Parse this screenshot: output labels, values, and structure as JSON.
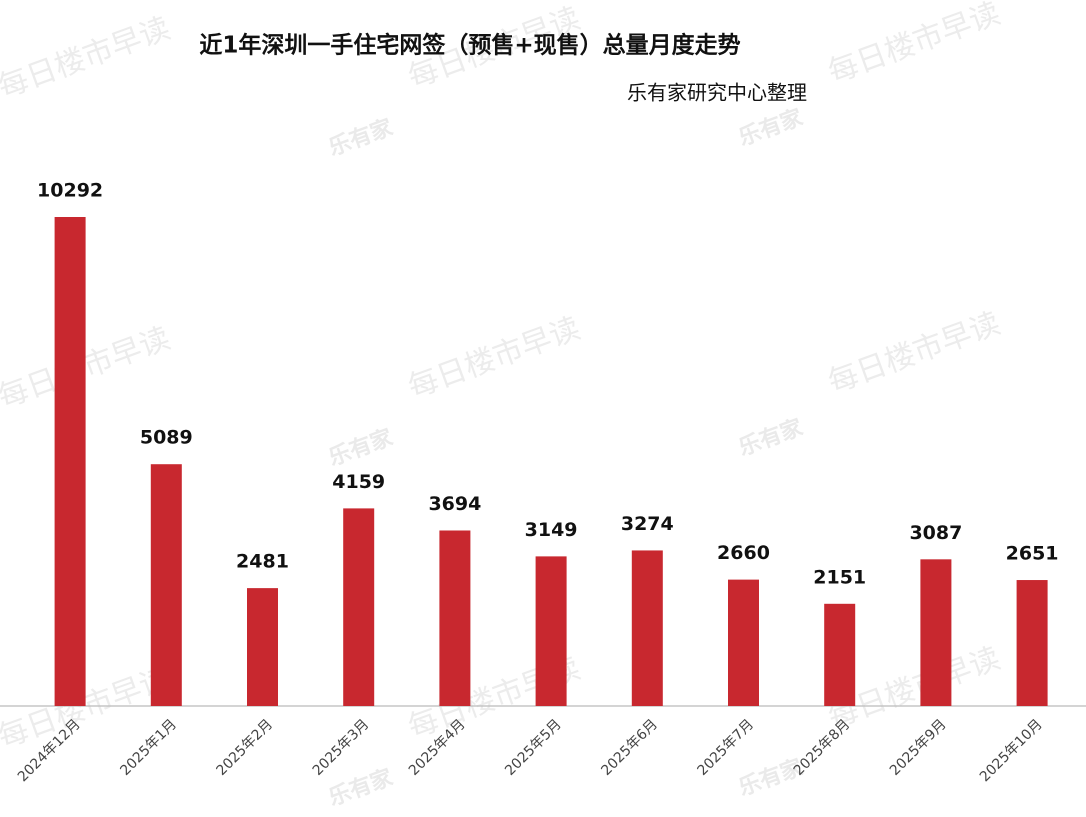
{
  "chart_data": {
    "type": "bar",
    "title": "近1年深圳一手住宅网签（预售+现售）总量月度走势",
    "subtitle": "乐有家研究中心整理",
    "watermark": [
      "每日楼市早读",
      "乐有家"
    ],
    "categories": [
      "2024年12月",
      "2025年1月",
      "2025年2月",
      "2025年3月",
      "2025年4月",
      "2025年5月",
      "2025年6月",
      "2025年7月",
      "2025年8月",
      "2025年9月",
      "2025年10月"
    ],
    "values": [
      10292,
      5089,
      2481,
      4159,
      3694,
      3149,
      3274,
      2660,
      2151,
      3087,
      2651
    ],
    "color": "#c8282f"
  }
}
